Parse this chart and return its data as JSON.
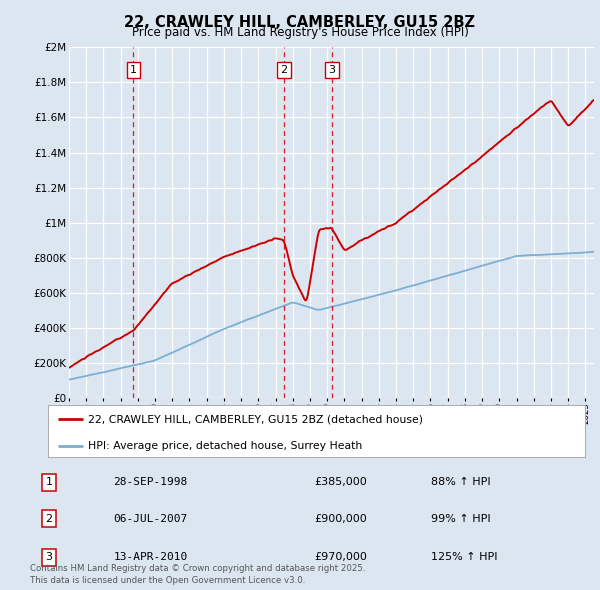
{
  "title": "22, CRAWLEY HILL, CAMBERLEY, GU15 2BZ",
  "subtitle": "Price paid vs. HM Land Registry's House Price Index (HPI)",
  "bg_color": "#dce6f1",
  "plot_bg_color": "#dce6f1",
  "red_color": "#cc0000",
  "blue_color": "#7bafd4",
  "grid_color": "#ffffff",
  "ylim": [
    0,
    2000000
  ],
  "yticks": [
    0,
    200000,
    400000,
    600000,
    800000,
    1000000,
    1200000,
    1400000,
    1600000,
    1800000,
    2000000
  ],
  "ytick_labels": [
    "£0",
    "£200K",
    "£400K",
    "£600K",
    "£800K",
    "£1M",
    "£1.2M",
    "£1.4M",
    "£1.6M",
    "£1.8M",
    "£2M"
  ],
  "transaction_table": [
    {
      "num": "1",
      "date": "28-SEP-1998",
      "price": "£385,000",
      "hpi": "88% ↑ HPI"
    },
    {
      "num": "2",
      "date": "06-JUL-2007",
      "price": "£900,000",
      "hpi": "99% ↑ HPI"
    },
    {
      "num": "3",
      "date": "13-APR-2010",
      "price": "£970,000",
      "hpi": "125% ↑ HPI"
    }
  ],
  "legend_entries": [
    "22, CRAWLEY HILL, CAMBERLEY, GU15 2BZ (detached house)",
    "HPI: Average price, detached house, Surrey Heath"
  ],
  "footer": "Contains HM Land Registry data © Crown copyright and database right 2025.\nThis data is licensed under the Open Government Licence v3.0.",
  "xmin": 1995,
  "xmax": 2025.5,
  "trans_dates": [
    1998.74,
    2007.5,
    2010.28
  ],
  "trans_labels": [
    "1",
    "2",
    "3"
  ]
}
